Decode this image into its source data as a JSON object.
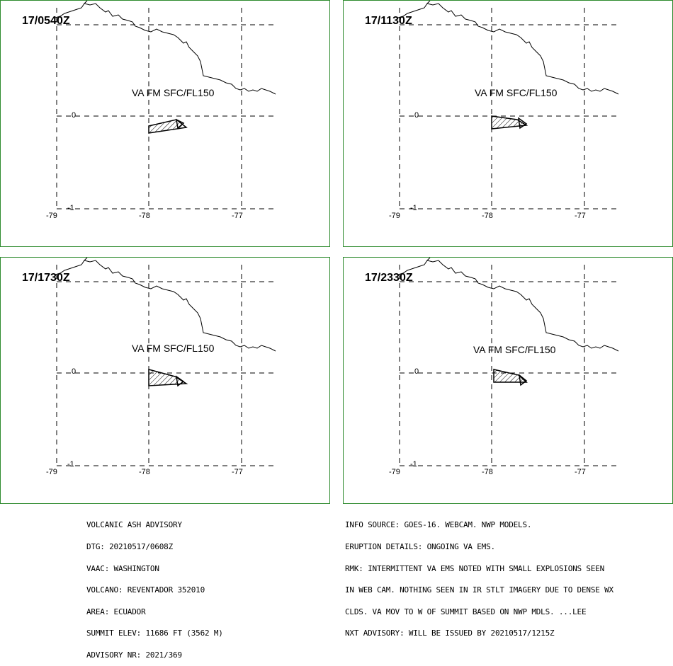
{
  "panels": [
    {
      "time": "17/0540Z",
      "va_label": "VA FM SFC/FL150"
    },
    {
      "time": "17/1130Z",
      "va_label": "VA FM SFC/FL150"
    },
    {
      "time": "17/1730Z",
      "va_label": "VA FM SFC/FL150"
    },
    {
      "time": "17/2330Z",
      "va_label": "VA FM SFC/FL150"
    }
  ],
  "axes": {
    "lon_ticks": [
      "-79",
      "-78",
      "-77"
    ],
    "lat_ticks": [
      "0",
      "-1"
    ]
  },
  "advisory_left": [
    "VOLCANIC ASH ADVISORY",
    "DTG: 20210517/0608Z",
    "VAAC: WASHINGTON",
    "VOLCANO: REVENTADOR 352010",
    "AREA: ECUADOR",
    "SUMMIT ELEV: 11686 FT (3562 M)",
    "ADVISORY NR: 2021/369"
  ],
  "advisory_right": [
    "INFO SOURCE: GOES-16. WEBCAM. NWP MODELS.",
    "ERUPTION DETAILS: ONGOING VA EMS.",
    "RMK: INTERMITTENT VA EMS NOTED WITH SMALL EXPLOSIONS SEEN",
    "IN WEB CAM. NOTHING SEEN IN IR STLT IMAGERY DUE TO DENSE WX",
    "CLDS. VA MOV TO W OF SUMMIT BASED ON NWP MDLS. ...LEE",
    "NXT ADVISORY: WILL BE ISSUED BY 20210517/1215Z"
  ],
  "colors": {
    "panel_border": "#2e8b2e",
    "grid": "#000000"
  }
}
